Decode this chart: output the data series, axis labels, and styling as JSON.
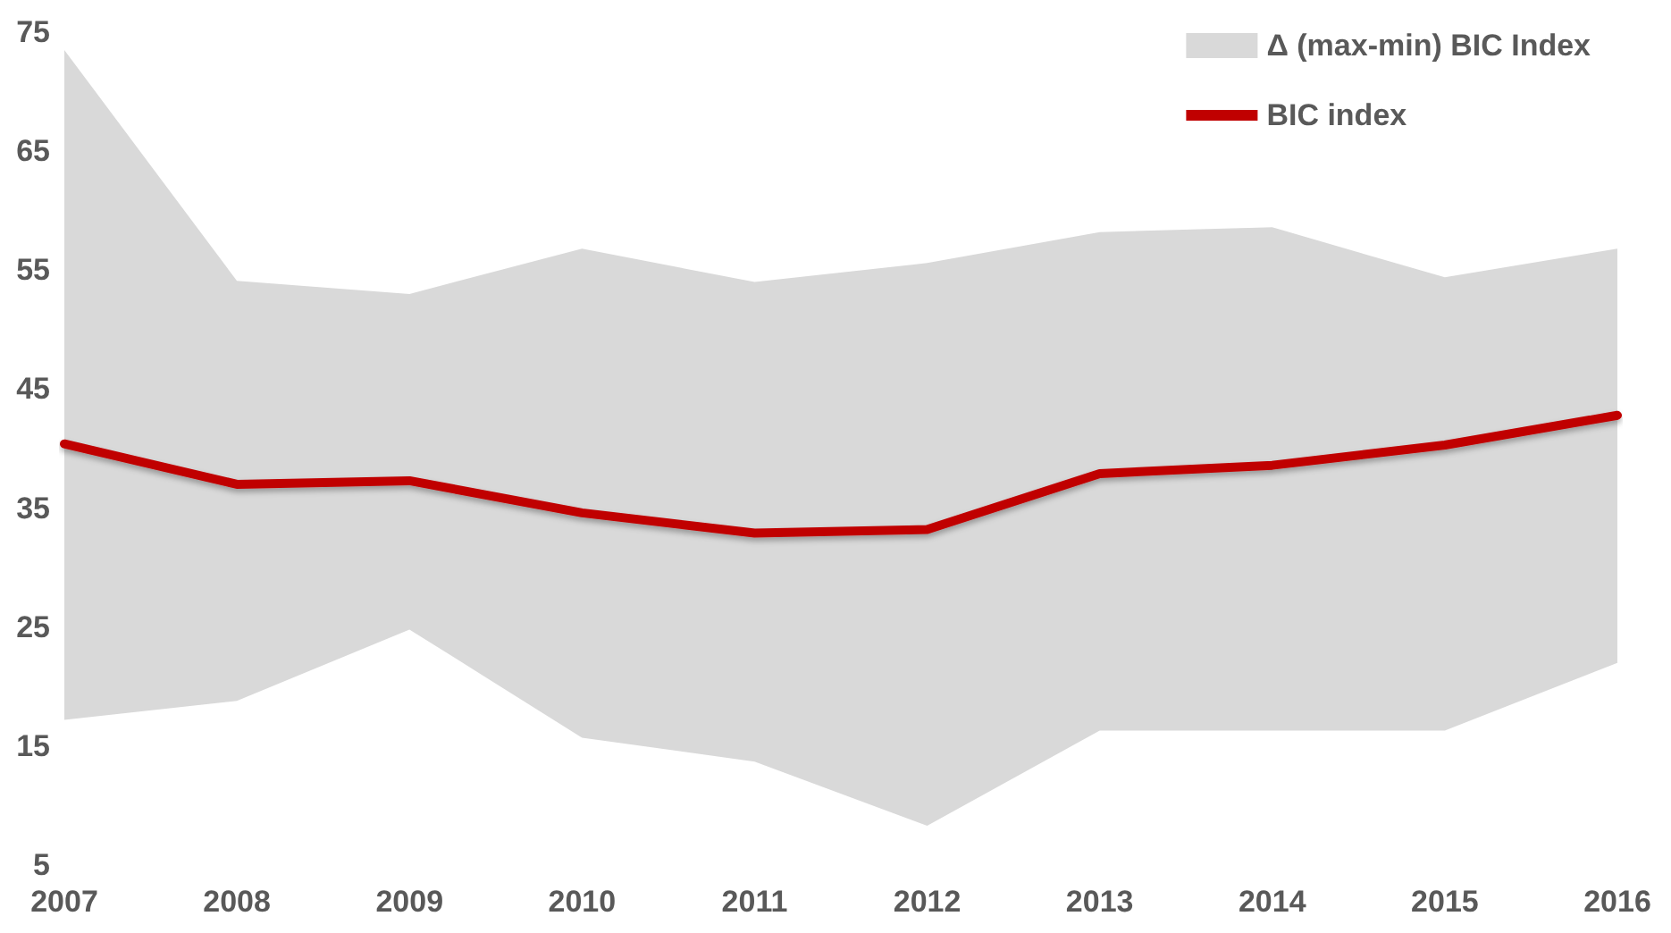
{
  "chart_data": {
    "type": "line",
    "categories": [
      "2007",
      "2008",
      "2009",
      "2010",
      "2011",
      "2012",
      "2013",
      "2014",
      "2015",
      "2016"
    ],
    "ylim": [
      5,
      75
    ],
    "yticks": [
      5,
      15,
      25,
      35,
      45,
      55,
      65,
      75
    ],
    "grid": false,
    "legend": "top right",
    "marker": "none",
    "line_style": "solid",
    "series": [
      {
        "type": "area",
        "name": "Δ (max-min) BIC Index",
        "color": "#d9d9d9",
        "values": [
          null,
          null,
          null,
          null,
          null,
          null,
          null,
          null,
          null,
          null
        ],
        "upper": [
          73.5,
          54.1,
          53.0,
          56.8,
          54.0,
          55.6,
          58.2,
          58.6,
          54.4,
          56.8
        ],
        "lower": [
          17.2,
          18.8,
          24.8,
          15.7,
          13.7,
          8.3,
          16.3,
          16.3,
          16.3,
          22.0
        ]
      },
      {
        "type": "line",
        "name": "BIC index",
        "color": "#c00000",
        "values": [
          40.4,
          37.0,
          37.3,
          34.6,
          32.9,
          33.2,
          37.9,
          38.6,
          40.3,
          42.8
        ]
      }
    ]
  }
}
